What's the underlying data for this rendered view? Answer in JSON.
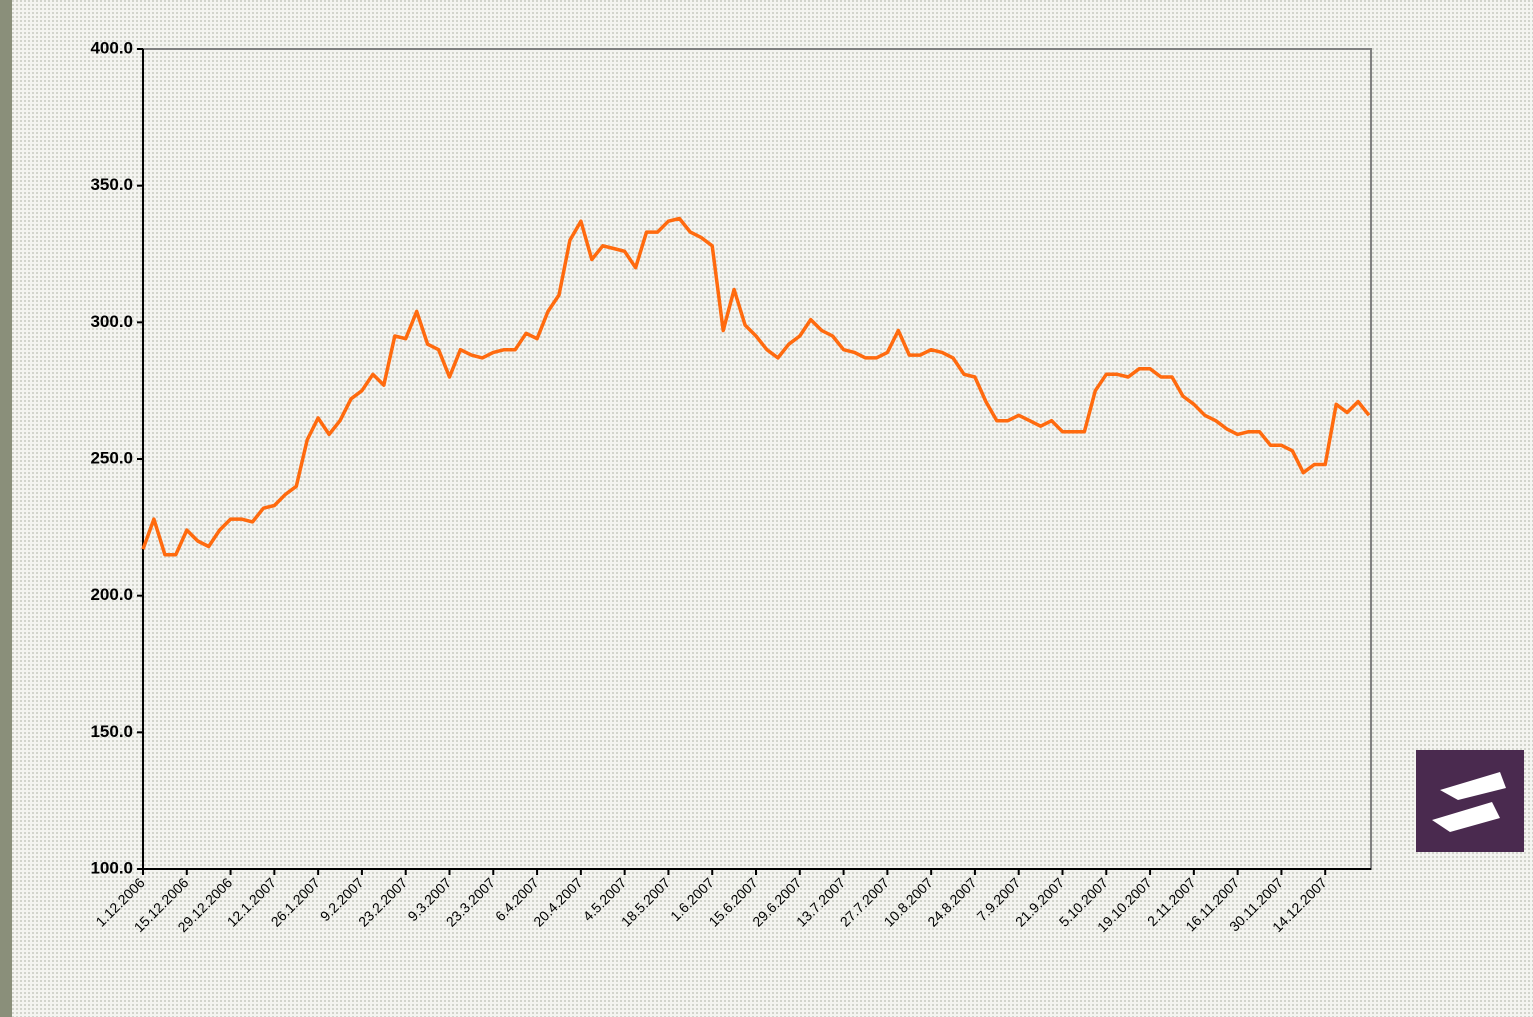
{
  "chart_data": {
    "type": "line",
    "categories": [
      "1.12.2006",
      null,
      null,
      null,
      "15.12.2006",
      null,
      null,
      null,
      "29.12.2006",
      null,
      null,
      null,
      "12.1.2007",
      null,
      null,
      null,
      "26.1.2007",
      null,
      null,
      null,
      "9.2.2007",
      null,
      null,
      null,
      "23.2.2007",
      null,
      null,
      null,
      "9.3.2007",
      null,
      null,
      null,
      "23.3.2007",
      null,
      null,
      null,
      "6.4.2007",
      null,
      null,
      null,
      "20.4.2007",
      null,
      null,
      null,
      "4.5.2007",
      null,
      null,
      null,
      "18.5.2007",
      null,
      null,
      null,
      "1.6.2007",
      null,
      null,
      null,
      "15.6.2007",
      null,
      null,
      null,
      "29.6.2007",
      null,
      null,
      null,
      "13.7.2007",
      null,
      null,
      null,
      "27.7.2007",
      null,
      null,
      null,
      "10.8.2007",
      null,
      null,
      null,
      "24.8.2007",
      null,
      null,
      null,
      "7.9.2007",
      null,
      null,
      null,
      "21.9.2007",
      null,
      null,
      null,
      "5.10.2007",
      null,
      null,
      null,
      "19.10.2007",
      null,
      null,
      null,
      "2.11.2007",
      null,
      null,
      null,
      "16.11.2007",
      null,
      null,
      null,
      "30.11.2007",
      null,
      null,
      null,
      "14.12.2007",
      null,
      null,
      null,
      null
    ],
    "values": [
      217,
      228,
      215,
      215,
      224,
      220,
      218,
      224,
      228,
      228,
      227,
      232,
      233,
      237,
      240,
      257,
      265,
      259,
      264,
      272,
      275,
      281,
      277,
      295,
      294,
      304,
      292,
      290,
      280,
      290,
      288,
      287,
      289,
      290,
      290,
      296,
      294,
      304,
      310,
      330,
      337,
      323,
      328,
      327,
      326,
      320,
      333,
      333,
      337,
      338,
      333,
      331,
      328,
      297,
      312,
      299,
      295,
      290,
      287,
      292,
      295,
      301,
      297,
      295,
      290,
      289,
      287,
      287,
      289,
      297,
      288,
      288,
      290,
      289,
      287,
      281,
      280,
      271,
      264,
      264,
      266,
      264,
      262,
      264,
      260,
      260,
      260,
      275,
      281,
      281,
      280,
      283,
      283,
      280,
      280,
      273,
      270,
      266,
      264,
      261,
      259,
      260,
      260,
      255,
      255,
      253,
      245,
      248,
      248,
      270,
      267,
      271,
      266
    ],
    "color": "#ff6a0e",
    "ylim": [
      100,
      400
    ],
    "yticks": [
      {
        "value": 100,
        "label": "100.0"
      },
      {
        "value": 150,
        "label": "150.0"
      },
      {
        "value": 200,
        "label": "200.0"
      },
      {
        "value": 250,
        "label": "250.0"
      },
      {
        "value": 300,
        "label": "300.0"
      },
      {
        "value": 350,
        "label": "350.0"
      },
      {
        "value": 400,
        "label": "400.0"
      }
    ],
    "grid": false
  }
}
